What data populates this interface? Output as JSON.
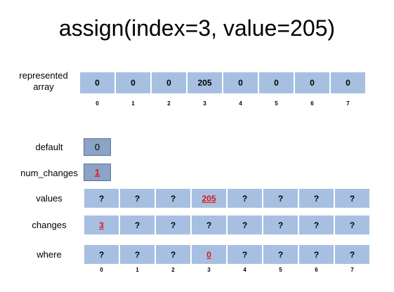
{
  "title": "assign(index=3, value=205)",
  "represented_array": {
    "label_line1": "represented",
    "label_line2": "array",
    "cells": [
      "0",
      "0",
      "0",
      "205",
      "0",
      "0",
      "0",
      "0"
    ],
    "indices": [
      "0",
      "1",
      "2",
      "3",
      "4",
      "5",
      "6",
      "7"
    ]
  },
  "default": {
    "label": "default",
    "value": "0"
  },
  "num_changes": {
    "label": "num_changes",
    "value": "1"
  },
  "values": {
    "label": "values",
    "cells": [
      "?",
      "?",
      "?",
      "205",
      "?",
      "?",
      "?",
      "?"
    ]
  },
  "changes": {
    "label": "changes",
    "cells": [
      "3",
      "?",
      "?",
      "?",
      "?",
      "?",
      "?",
      "?"
    ]
  },
  "where": {
    "label": "where",
    "cells": [
      "?",
      "?",
      "?",
      "0",
      "?",
      "?",
      "?",
      "?"
    ],
    "indices": [
      "0",
      "1",
      "2",
      "3",
      "4",
      "5",
      "6",
      "7"
    ]
  },
  "colors": {
    "cell": "#a7c0e1",
    "cell_dark": "#8aa3c6",
    "highlight": "#e1141b"
  }
}
